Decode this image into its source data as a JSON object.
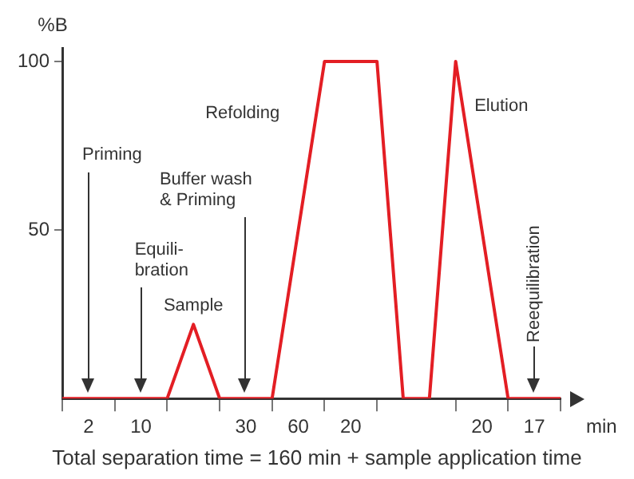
{
  "chart_data": {
    "type": "line",
    "xlabel": "min",
    "ylabel": "%B",
    "categories": [
      null,
      "2",
      null,
      "10",
      null,
      null,
      null,
      "30",
      null,
      "60",
      null,
      "20",
      null,
      null,
      null,
      null,
      "20",
      null,
      "17",
      null
    ],
    "values": [
      0,
      0,
      0,
      0,
      0,
      22,
      0,
      0,
      0,
      50,
      100,
      100,
      100,
      0,
      0,
      100,
      50,
      0,
      0,
      0
    ],
    "color": "#e31e24",
    "marker": "none",
    "line_style": "solid",
    "ylim": [
      0,
      104
    ],
    "yticks": [
      50,
      100
    ],
    "annotations": [
      "Priming",
      "Equili-\nbration",
      {
        "text": "Sample",
        "y": 22
      },
      "Buffer wash\n& Priming",
      "Refolding",
      "Elution",
      "Reequilibration",
      "Total separation time = 160 min + sample application time"
    ]
  }
}
